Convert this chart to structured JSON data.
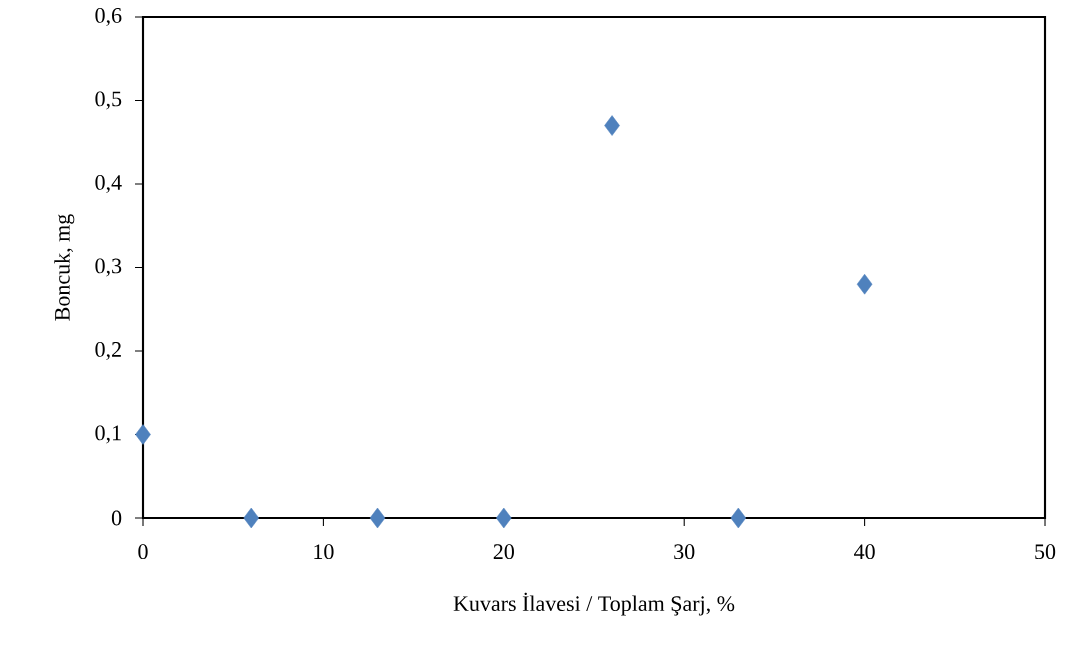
{
  "chart_data": {
    "type": "scatter",
    "xlabel": "Kuvars İlavesi / Toplam Şarj, %",
    "ylabel": "Boncuk, mg",
    "x": [
      0,
      6,
      13,
      20,
      26,
      33,
      40
    ],
    "series": [
      {
        "color": "#4f81bd",
        "values": [
          0.1,
          0,
          0,
          0,
          0.47,
          0,
          0.28
        ]
      }
    ],
    "xlim": [
      0,
      50
    ],
    "xticks": [
      0,
      10,
      20,
      30,
      40,
      50
    ],
    "ylim": [
      0,
      0.6
    ],
    "yticks": [
      0,
      {
        "value": 0.1,
        "label": "0,1"
      },
      {
        "value": 0.2,
        "label": "0,2"
      },
      {
        "value": 0.3,
        "label": "0,3"
      },
      {
        "value": 0.4,
        "label": "0,4"
      },
      {
        "value": 0.5,
        "label": "0,5"
      },
      {
        "value": 0.6,
        "label": "0,6"
      }
    ],
    "marker": "diamond",
    "grid": false
  }
}
